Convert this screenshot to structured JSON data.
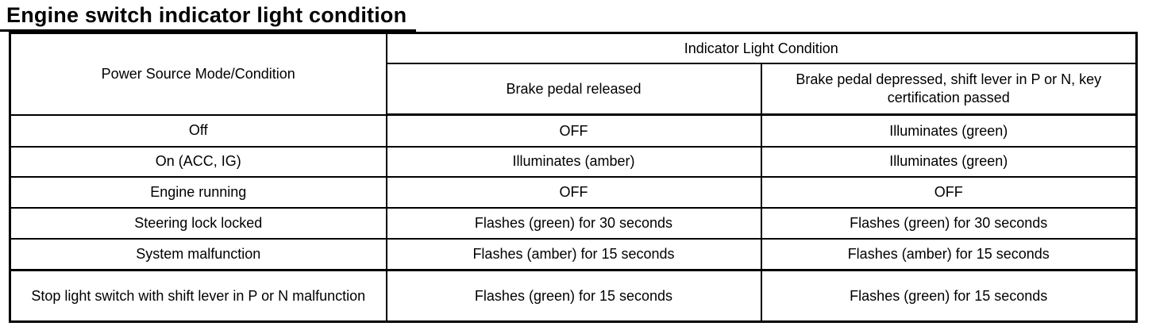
{
  "title": "Engine switch indicator light condition",
  "table": {
    "corner_header": "Power Source Mode/Condition",
    "group_header": "Indicator Light Condition",
    "col_headers": {
      "released": "Brake pedal released",
      "depressed": "Brake pedal depressed, shift lever in P or N, key certification passed"
    },
    "rows": [
      {
        "condition": "Off",
        "released": "OFF",
        "depressed": "Illuminates (green)"
      },
      {
        "condition": "On (ACC, IG)",
        "released": "Illuminates (amber)",
        "depressed": "Illuminates (green)"
      },
      {
        "condition": "Engine running",
        "released": "OFF",
        "depressed": "OFF"
      },
      {
        "condition": "Steering lock locked",
        "released": "Flashes (green) for 30 seconds",
        "depressed": "Flashes (green) for 30 seconds"
      },
      {
        "condition": "System malfunction",
        "released": "Flashes (amber) for 15 seconds",
        "depressed": "Flashes (amber) for 15 seconds"
      },
      {
        "condition": "Stop light switch with shift lever in P or N malfunction",
        "released": "Flashes (green) for 15 seconds",
        "depressed": "Flashes (green) for 15 seconds"
      }
    ]
  },
  "colors": {
    "text": "#000000",
    "border": "#000000",
    "background": "#ffffff"
  }
}
